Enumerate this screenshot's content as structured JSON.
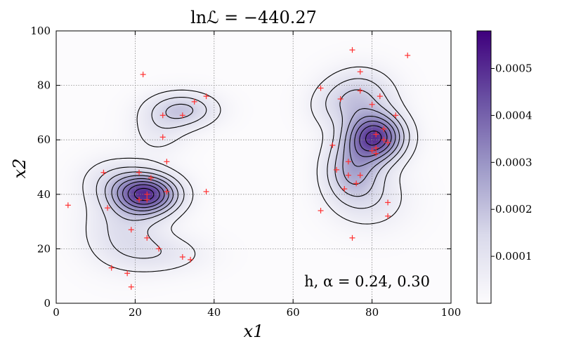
{
  "chart_data": {
    "type": "heatmap",
    "title": "lnℒ = −440.27",
    "xlabel": "x1",
    "ylabel": "x2",
    "xlim": [
      0,
      100
    ],
    "ylim": [
      0,
      100
    ],
    "xticks": [
      0,
      20,
      40,
      60,
      80,
      100
    ],
    "yticks": [
      0,
      20,
      40,
      60,
      80,
      100
    ],
    "grid": true,
    "annotation": "h, α = 0.24, 0.30",
    "colormap": "Purples",
    "colorbar": {
      "min": 0,
      "max": 0.00058,
      "ticks": [
        0.0001,
        0.0002,
        0.0003,
        0.0004,
        0.0005
      ],
      "tick_labels": [
        "0.0001",
        "0.0002",
        "0.0003",
        "0.0004",
        "0.0005"
      ]
    },
    "points": {
      "marker": "+",
      "color": "#ff3030",
      "x": [
        3,
        12,
        13,
        14,
        18,
        19,
        19,
        21,
        21,
        22,
        23,
        23,
        23,
        24,
        26,
        27,
        27,
        28,
        28,
        32,
        32,
        34,
        35,
        38,
        38,
        67,
        67,
        70,
        71,
        72,
        73,
        74,
        74,
        75,
        75,
        76,
        77,
        77,
        77,
        80,
        80,
        81,
        81,
        81,
        82,
        83,
        83,
        84,
        84,
        84,
        86,
        89
      ],
      "y": [
        36,
        48,
        35,
        13,
        11,
        6,
        27,
        38,
        48,
        84,
        24,
        38,
        40,
        46,
        20,
        69,
        61,
        52,
        41,
        17,
        69,
        16,
        74,
        76,
        41,
        34,
        79,
        58,
        49,
        75,
        42,
        52,
        47,
        24,
        93,
        44,
        47,
        85,
        78,
        56,
        73,
        62,
        57,
        55,
        76,
        64,
        60,
        37,
        32,
        59,
        69,
        91
      ]
    },
    "density_components": [
      {
        "cx": 23,
        "cy": 40,
        "sx": 5.5,
        "sy": 5.0,
        "w": 0.00045
      },
      {
        "cx": 17,
        "cy": 27,
        "sx": 7.0,
        "sy": 9.0,
        "w": 0.00012
      },
      {
        "cx": 27,
        "cy": 18,
        "sx": 8.0,
        "sy": 5.0,
        "w": 8e-05
      },
      {
        "cx": 15,
        "cy": 45,
        "sx": 6.0,
        "sy": 6.0,
        "w": 0.0001
      },
      {
        "cx": 32,
        "cy": 71,
        "sx": 6.0,
        "sy": 4.5,
        "w": 0.00018
      },
      {
        "cx": 26,
        "cy": 63,
        "sx": 5.0,
        "sy": 6.0,
        "w": 7e-05
      },
      {
        "cx": 81,
        "cy": 61,
        "sx": 5.0,
        "sy": 6.0,
        "w": 0.00045
      },
      {
        "cx": 75,
        "cy": 49,
        "sx": 5.0,
        "sy": 8.0,
        "w": 0.00022
      },
      {
        "cx": 77,
        "cy": 76,
        "sx": 6.0,
        "sy": 7.0,
        "w": 0.00016
      },
      {
        "cx": 80,
        "cy": 38,
        "sx": 7.0,
        "sy": 8.0,
        "w": 8e-05
      },
      {
        "cx": 70,
        "cy": 72,
        "sx": 5.0,
        "sy": 6.0,
        "w": 6e-05
      }
    ],
    "contour_levels": [
      5e-05,
      0.00011,
      0.00017,
      0.00023,
      0.00029,
      0.00035,
      0.00041,
      0.00047
    ]
  }
}
